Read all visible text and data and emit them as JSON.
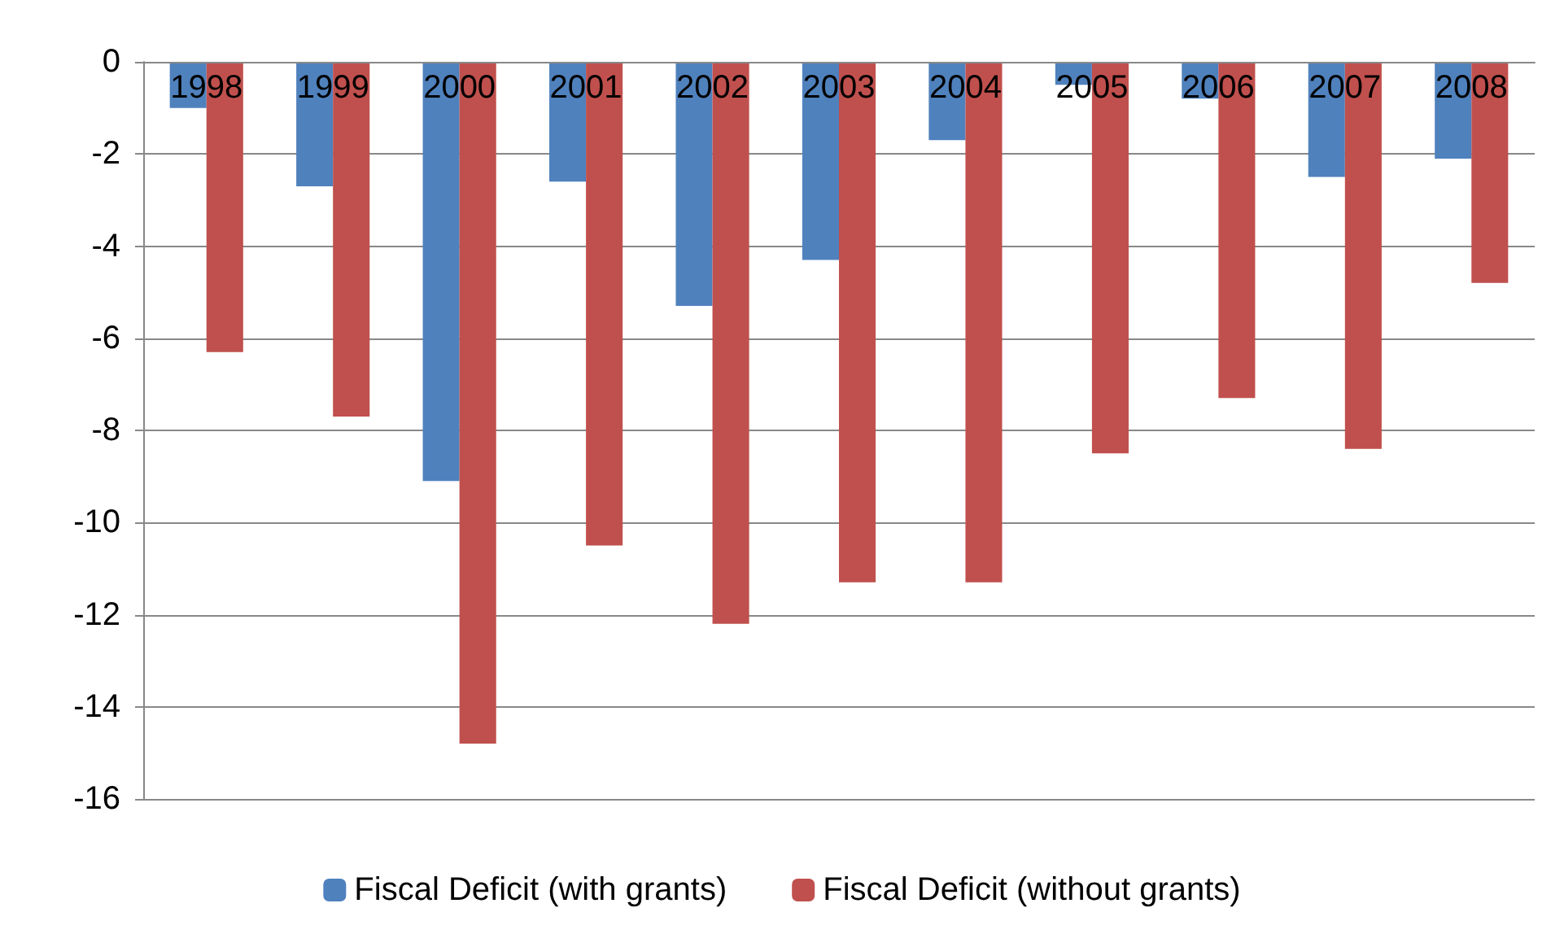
{
  "chart_data": {
    "type": "bar",
    "categories": [
      "1998",
      "1999",
      "2000",
      "2001",
      "2002",
      "2003",
      "2004",
      "2005",
      "2006",
      "2007",
      "2008"
    ],
    "series": [
      {
        "name": "Fiscal Deficit (with grants)",
        "color": "#4f81bd",
        "values": [
          -1.0,
          -2.7,
          -9.1,
          -2.6,
          -5.3,
          -4.3,
          -1.7,
          -0.5,
          -0.8,
          -2.5,
          -2.1
        ]
      },
      {
        "name": "Fiscal Deficit (without grants)",
        "color": "#c0504d",
        "values": [
          -6.3,
          -7.7,
          -14.8,
          -10.5,
          -12.2,
          -11.3,
          -11.3,
          -8.5,
          -7.3,
          -8.4,
          -4.8
        ]
      }
    ],
    "ylim": [
      -16,
      0
    ],
    "yticks": [
      -16,
      -14,
      -12,
      -10,
      -8,
      -6,
      -4,
      -2,
      0
    ],
    "grid": "y",
    "legend": "bottom"
  }
}
